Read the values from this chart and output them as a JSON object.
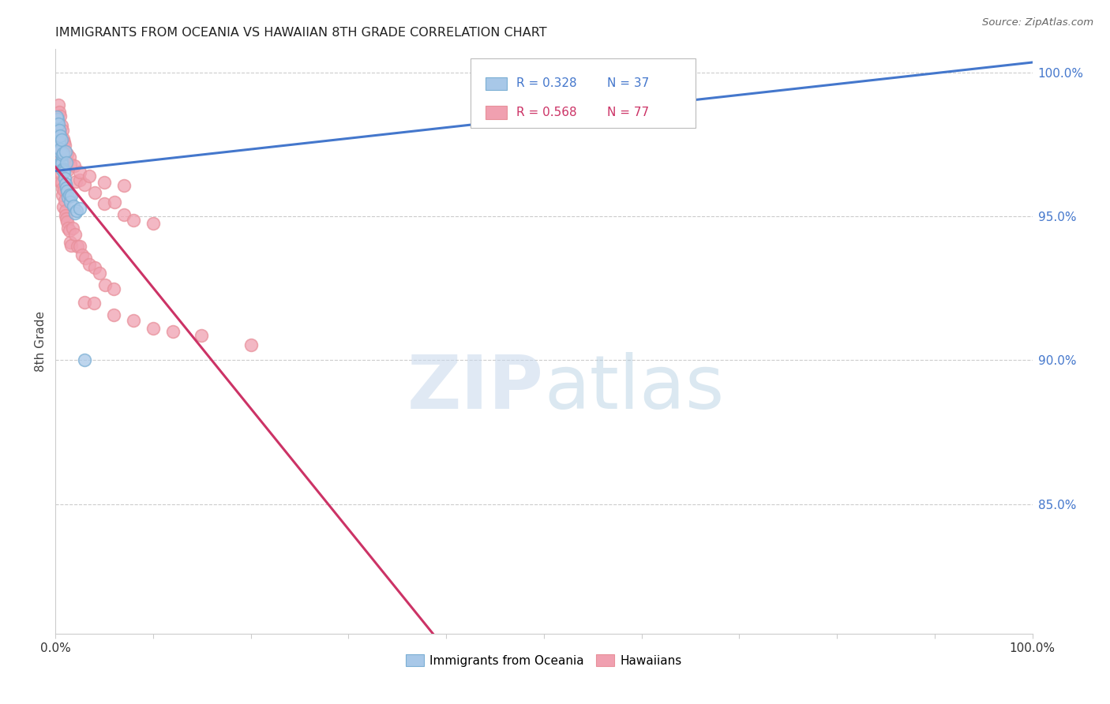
{
  "title": "IMMIGRANTS FROM OCEANIA VS HAWAIIAN 8TH GRADE CORRELATION CHART",
  "source": "Source: ZipAtlas.com",
  "ylabel": "8th Grade",
  "right_yticks": [
    "100.0%",
    "95.0%",
    "90.0%",
    "85.0%"
  ],
  "right_ytick_vals": [
    1.0,
    0.95,
    0.9,
    0.85
  ],
  "legend_blue_label": "Immigrants from Oceania",
  "legend_pink_label": "Hawaiians",
  "blue_R": 0.328,
  "blue_N": 37,
  "pink_R": 0.568,
  "pink_N": 77,
  "blue_color": "#a8c8e8",
  "pink_color": "#f0a0b0",
  "blue_line_color": "#4477cc",
  "pink_line_color": "#cc3366",
  "blue_edge_color": "#7bafd4",
  "pink_edge_color": "#e8909a",
  "blue_points_x": [
    0.001,
    0.002,
    0.003,
    0.003,
    0.004,
    0.004,
    0.005,
    0.005,
    0.006,
    0.006,
    0.007,
    0.007,
    0.008,
    0.008,
    0.009,
    0.01,
    0.01,
    0.011,
    0.012,
    0.013,
    0.014,
    0.015,
    0.016,
    0.018,
    0.02,
    0.022,
    0.025,
    0.002,
    0.003,
    0.004,
    0.005,
    0.006,
    0.008,
    0.01,
    0.012,
    0.03,
    0.62
  ],
  "blue_points_y": [
    0.98,
    0.982,
    0.978,
    0.975,
    0.976,
    0.972,
    0.974,
    0.97,
    0.971,
    0.968,
    0.969,
    0.966,
    0.967,
    0.964,
    0.965,
    0.963,
    0.961,
    0.96,
    0.959,
    0.958,
    0.957,
    0.955,
    0.956,
    0.954,
    0.953,
    0.952,
    0.951,
    0.985,
    0.983,
    0.981,
    0.979,
    0.977,
    0.973,
    0.971,
    0.969,
    0.9,
    0.993
  ],
  "pink_points_x": [
    0.001,
    0.001,
    0.002,
    0.002,
    0.003,
    0.003,
    0.004,
    0.004,
    0.005,
    0.005,
    0.006,
    0.006,
    0.007,
    0.007,
    0.008,
    0.008,
    0.009,
    0.01,
    0.01,
    0.011,
    0.012,
    0.013,
    0.014,
    0.015,
    0.016,
    0.018,
    0.02,
    0.022,
    0.025,
    0.028,
    0.03,
    0.035,
    0.04,
    0.045,
    0.05,
    0.06,
    0.002,
    0.003,
    0.004,
    0.005,
    0.006,
    0.008,
    0.01,
    0.012,
    0.015,
    0.02,
    0.025,
    0.03,
    0.04,
    0.05,
    0.06,
    0.07,
    0.08,
    0.1,
    0.003,
    0.004,
    0.005,
    0.006,
    0.007,
    0.008,
    0.009,
    0.01,
    0.012,
    0.015,
    0.02,
    0.025,
    0.035,
    0.05,
    0.07,
    0.03,
    0.04,
    0.06,
    0.08,
    0.1,
    0.12,
    0.15,
    0.2
  ],
  "pink_points_y": [
    0.978,
    0.975,
    0.976,
    0.972,
    0.973,
    0.969,
    0.97,
    0.966,
    0.967,
    0.963,
    0.964,
    0.96,
    0.961,
    0.957,
    0.958,
    0.954,
    0.955,
    0.953,
    0.951,
    0.95,
    0.948,
    0.946,
    0.944,
    0.942,
    0.94,
    0.945,
    0.943,
    0.941,
    0.939,
    0.937,
    0.935,
    0.933,
    0.931,
    0.93,
    0.928,
    0.926,
    0.982,
    0.98,
    0.978,
    0.976,
    0.974,
    0.972,
    0.97,
    0.968,
    0.966,
    0.964,
    0.962,
    0.96,
    0.958,
    0.956,
    0.954,
    0.952,
    0.95,
    0.948,
    0.988,
    0.986,
    0.984,
    0.982,
    0.98,
    0.978,
    0.976,
    0.974,
    0.972,
    0.97,
    0.968,
    0.966,
    0.964,
    0.962,
    0.96,
    0.92,
    0.918,
    0.916,
    0.914,
    0.912,
    0.91,
    0.908,
    0.906
  ]
}
